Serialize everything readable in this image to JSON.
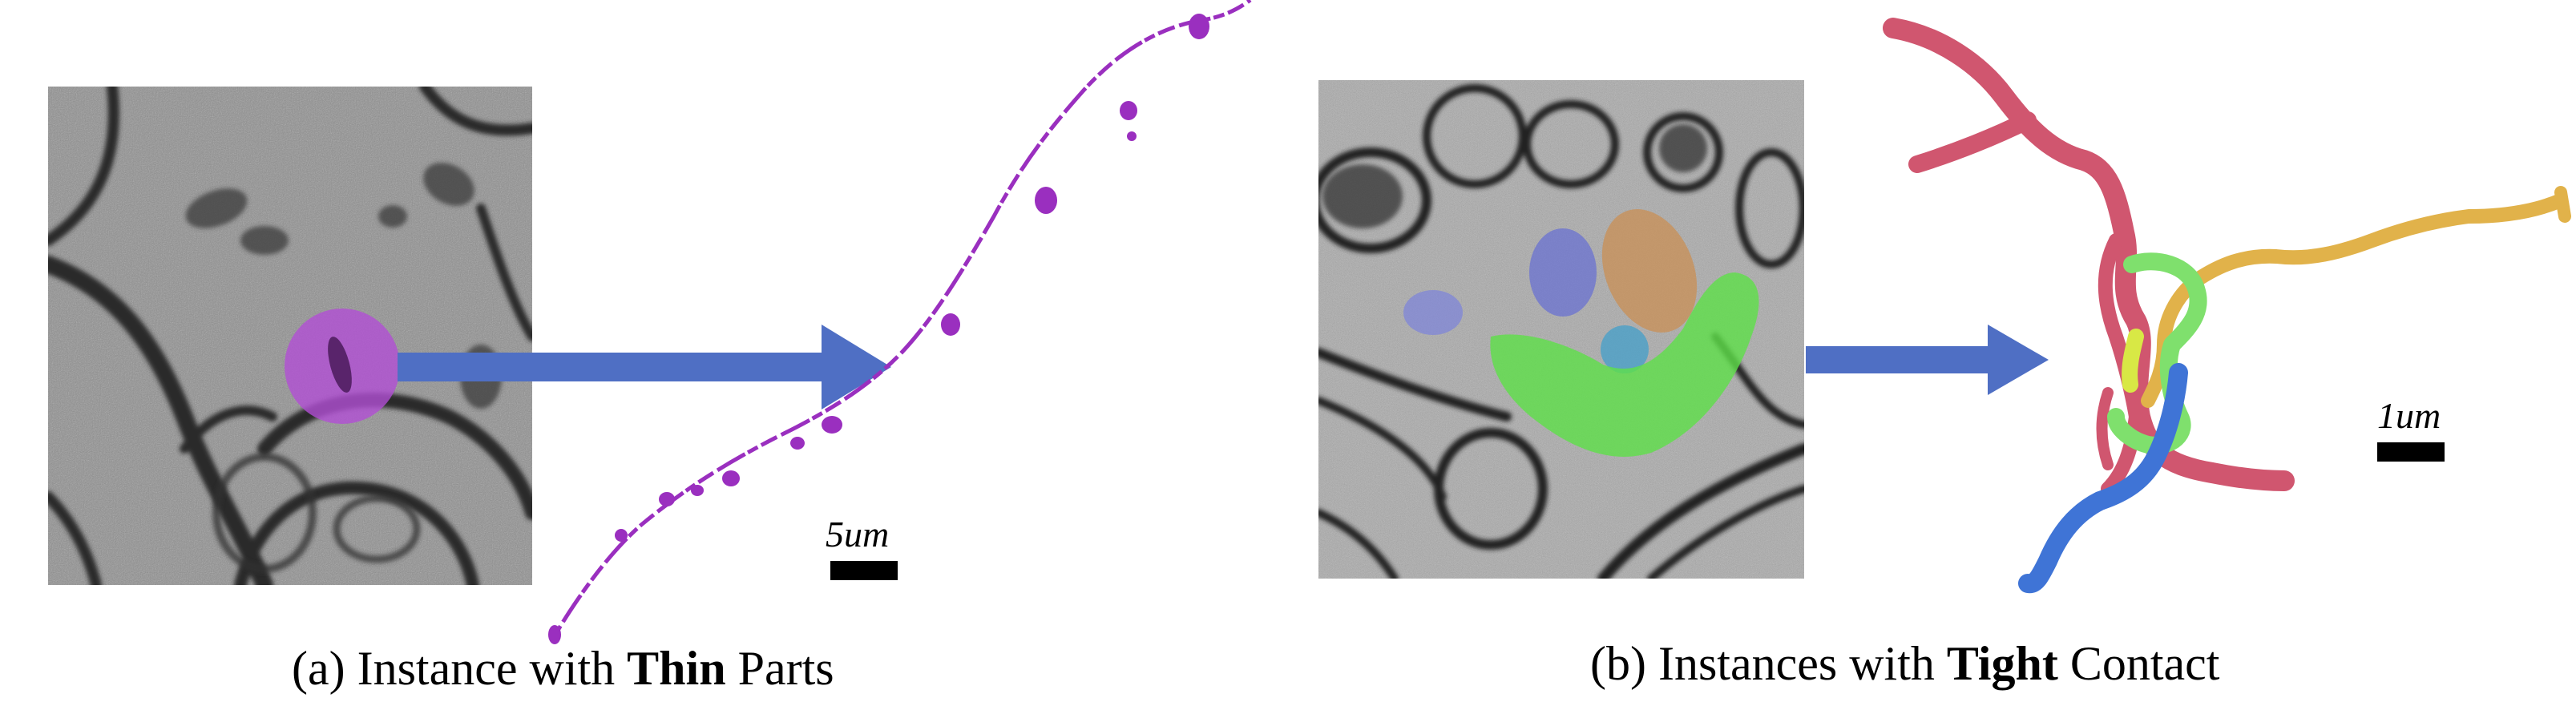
{
  "panel_a": {
    "caption_prefix": "(a) Instance with ",
    "caption_bold": "Thin",
    "caption_suffix": " Parts",
    "scale_label": "5um",
    "highlight_color": "#b24fd4",
    "arrow_color": "#4f6fc4"
  },
  "panel_b": {
    "caption_prefix": "(b) Instances with ",
    "caption_bold": "Tight",
    "caption_suffix": " Contact",
    "scale_label": "1um",
    "arrow_color": "#4f6fc4",
    "instance_colors": [
      "#d0566f",
      "#e1b24a",
      "#7fe06d",
      "#3f74d6",
      "#d8e845",
      "#7f86d8",
      "#c8915a",
      "#4aa0c8"
    ]
  }
}
